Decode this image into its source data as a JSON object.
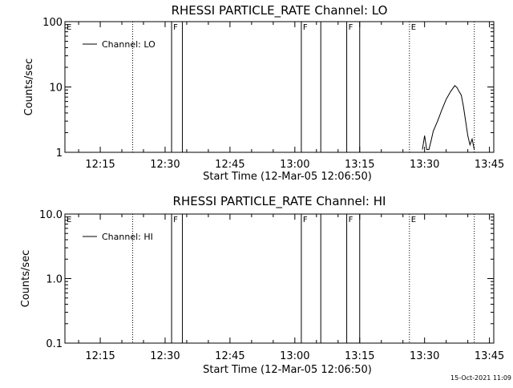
{
  "chart_data": [
    {
      "type": "line",
      "title": "RHESSI PARTICLE_RATE Channel: LO",
      "xlabel": "Start Time (12-Mar-05 12:06:50)",
      "ylabel": "Counts/sec",
      "y_scale": "log",
      "xlim": [
        "12:06:50",
        "13:46:00"
      ],
      "ylim": [
        1,
        100
      ],
      "x_ticks": [
        "12:15",
        "12:30",
        "12:45",
        "13:00",
        "13:15",
        "13:30",
        "13:45"
      ],
      "y_ticks": [
        "1",
        "10",
        "100"
      ],
      "legend": {
        "entries": [
          "Channel: LO"
        ],
        "placement": "top-left"
      },
      "series": [
        {
          "name": "Channel: LO",
          "x": [
            "13:29.5",
            "13:30.0",
            "13:30.5",
            "13:31.0",
            "13:31.5",
            "13:32.0",
            "13:33.0",
            "13:34.0",
            "13:35.0",
            "13:36.0",
            "13:37.0",
            "13:37.5",
            "13:38.0",
            "13:38.5",
            "13:39.0",
            "13:39.5",
            "13:40.0",
            "13:40.5",
            "13:41.0",
            "13:41.5"
          ],
          "y": [
            1.1,
            1.8,
            1.1,
            1.1,
            1.5,
            2.1,
            3.0,
            4.5,
            6.5,
            8.5,
            10.5,
            9.8,
            8.5,
            7.5,
            5.0,
            3.0,
            1.8,
            1.3,
            1.6,
            1.1
          ]
        }
      ],
      "markers": [
        {
          "time": "12:22.5",
          "style": "dotted",
          "label": ""
        },
        {
          "time": "12:31.5",
          "style": "solid",
          "label": "F"
        },
        {
          "time": "12:34.0",
          "style": "solid",
          "label": ""
        },
        {
          "time": "13:01.5",
          "style": "solid",
          "label": "F"
        },
        {
          "time": "13:06.0",
          "style": "solid",
          "label": ""
        },
        {
          "time": "13:12.0",
          "style": "solid",
          "label": "F"
        },
        {
          "time": "13:15.0",
          "style": "solid",
          "label": ""
        },
        {
          "time": "13:26.5",
          "style": "dotted",
          "label": "E"
        },
        {
          "time": "13:41.5",
          "style": "dotted",
          "label": ""
        }
      ],
      "corner_label": "E"
    },
    {
      "type": "line",
      "title": "RHESSI PARTICLE_RATE Channel: HI",
      "xlabel": "Start Time (12-Mar-05 12:06:50)",
      "ylabel": "Counts/sec",
      "y_scale": "log",
      "xlim": [
        "12:06:50",
        "13:46:00"
      ],
      "ylim": [
        0.1,
        10
      ],
      "x_ticks": [
        "12:15",
        "12:30",
        "12:45",
        "13:00",
        "13:15",
        "13:30",
        "13:45"
      ],
      "y_ticks": [
        "0.1",
        "1.0",
        "10.0"
      ],
      "legend": {
        "entries": [
          "Channel: HI"
        ],
        "placement": "top-left"
      },
      "series": [
        {
          "name": "Channel: HI",
          "x": [],
          "y": []
        }
      ],
      "markers": [
        {
          "time": "12:22.5",
          "style": "dotted",
          "label": ""
        },
        {
          "time": "12:31.5",
          "style": "solid",
          "label": "F"
        },
        {
          "time": "12:34.0",
          "style": "solid",
          "label": ""
        },
        {
          "time": "13:01.5",
          "style": "solid",
          "label": "F"
        },
        {
          "time": "13:06.0",
          "style": "solid",
          "label": ""
        },
        {
          "time": "13:12.0",
          "style": "solid",
          "label": "F"
        },
        {
          "time": "13:15.0",
          "style": "solid",
          "label": ""
        },
        {
          "time": "13:26.5",
          "style": "dotted",
          "label": "E"
        },
        {
          "time": "13:41.5",
          "style": "dotted",
          "label": ""
        }
      ],
      "corner_label": "E"
    }
  ],
  "footer": {
    "timestamp": "15-Oct-2021 11:09"
  }
}
